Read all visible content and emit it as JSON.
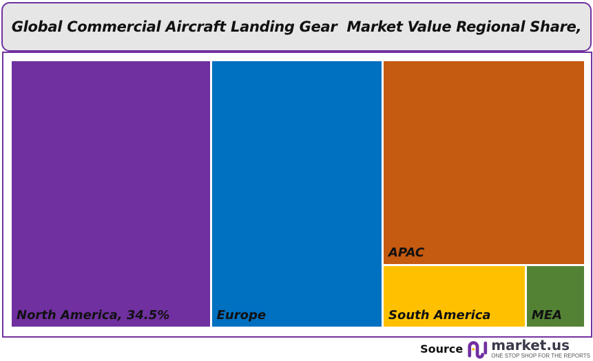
{
  "chart_data": {
    "type": "treemap",
    "title": "Global Commercial Aircraft Landing Gear  Market Value Regional Share,",
    "series": [
      {
        "name": "North America",
        "label": "North America, 34.5%",
        "value": 34.5,
        "color": "#7030a0"
      },
      {
        "name": "Europe",
        "label": "Europe",
        "value": 29.6,
        "color": "#0070c0"
      },
      {
        "name": "APAC",
        "label": "APAC",
        "value": 26.7,
        "color": "#c55a11"
      },
      {
        "name": "South America",
        "label": "South America",
        "value": 5.8,
        "color": "#ffc000"
      },
      {
        "name": "MEA",
        "label": "MEA",
        "value": 2.4,
        "color": "#548235"
      }
    ]
  },
  "footer": {
    "source_label": "Source",
    "logo_text": "market.us",
    "logo_tagline": "ONE STOP SHOP FOR THE REPORTS"
  },
  "colors": {
    "border": "#7030a0",
    "title_bg": "#e6e6e6"
  }
}
